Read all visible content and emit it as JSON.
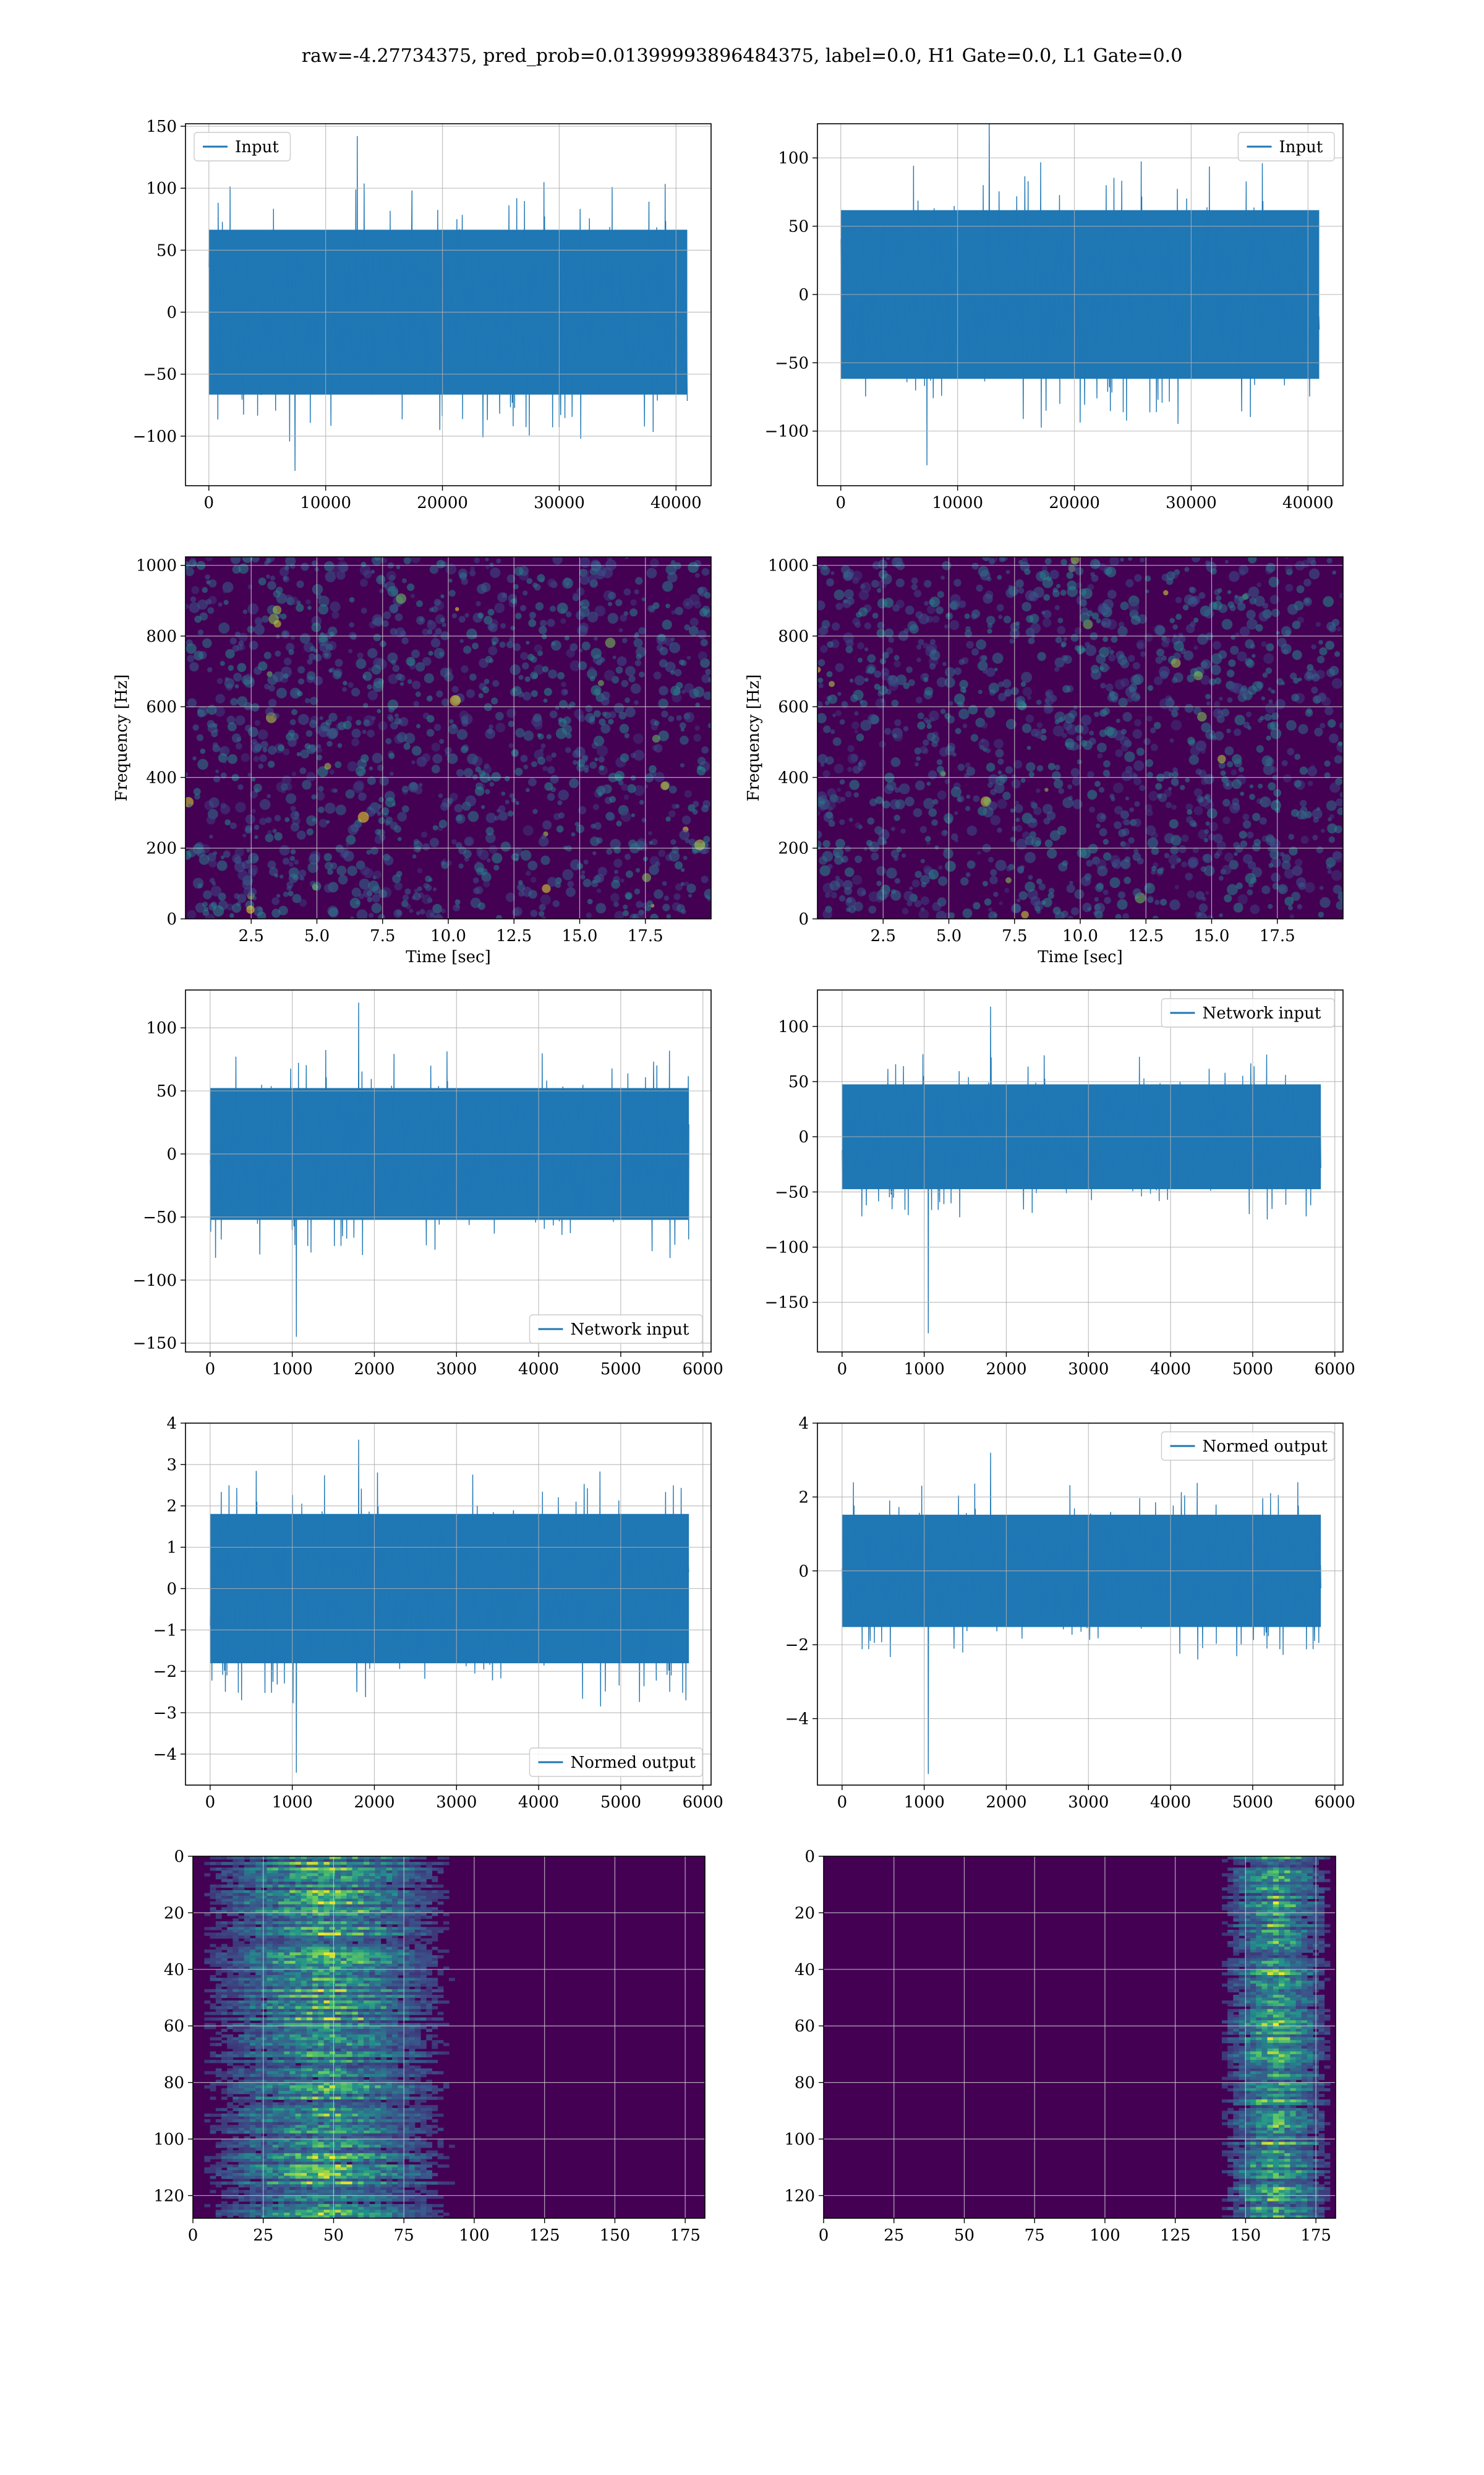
{
  "figure_title": "raw=-4.27734375, pred_prob=0.01399993896484375, label=0.0, H1 Gate=0.0, L1 Gate=0.0",
  "colors": {
    "trace": "#1f77b4",
    "grid": "#b0b0b0",
    "viridis_low": "#440154",
    "viridis_mid": "#21918c",
    "viridis_high": "#fde725"
  },
  "chart_data": [
    {
      "panel": "row1-left",
      "type": "line",
      "legend": [
        "Input"
      ],
      "legend_loc": "upper-left",
      "xlim": [
        -2000,
        43000
      ],
      "ylim": [
        -140,
        152
      ],
      "xticks": [
        0,
        10000,
        20000,
        30000,
        40000
      ],
      "yticks": [
        -100,
        -50,
        0,
        50,
        100,
        150
      ],
      "grid": true,
      "series": [
        {
          "x_range": [
            0,
            40960
          ],
          "envelope": [
            -70,
            70
          ],
          "spike_max": 142,
          "spike_min": -128
        }
      ]
    },
    {
      "panel": "row1-right",
      "type": "line",
      "legend": [
        "Input"
      ],
      "legend_loc": "upper-right",
      "xlim": [
        -2000,
        43000
      ],
      "ylim": [
        -140,
        125
      ],
      "xticks": [
        0,
        10000,
        20000,
        30000,
        40000
      ],
      "yticks": [
        -100,
        -50,
        0,
        50,
        100
      ],
      "grid": true,
      "series": [
        {
          "x_range": [
            0,
            40960
          ],
          "envelope": [
            -65,
            65
          ],
          "spike_max": 127,
          "spike_min": -125
        }
      ]
    },
    {
      "panel": "row2-left",
      "type": "heatmap",
      "xlabel": "Time [sec]",
      "ylabel": "Frequency [Hz]",
      "xlim": [
        0,
        20
      ],
      "ylim": [
        0,
        1024
      ],
      "xticks": [
        2.5,
        5.0,
        7.5,
        10.0,
        12.5,
        15.0,
        17.5
      ],
      "yticks": [
        0,
        200,
        400,
        600,
        800,
        1000
      ],
      "grid": true,
      "colormap": "viridis"
    },
    {
      "panel": "row2-right",
      "type": "heatmap",
      "xlabel": "Time [sec]",
      "ylabel": "Frequency [Hz]",
      "xlim": [
        0,
        20
      ],
      "ylim": [
        0,
        1024
      ],
      "xticks": [
        2.5,
        5.0,
        7.5,
        10.0,
        12.5,
        15.0,
        17.5
      ],
      "yticks": [
        0,
        200,
        400,
        600,
        800,
        1000
      ],
      "grid": true,
      "colormap": "viridis"
    },
    {
      "panel": "row3-left",
      "type": "line",
      "legend": [
        "Network input"
      ],
      "legend_loc": "lower-right",
      "xlim": [
        -300,
        6100
      ],
      "ylim": [
        -157,
        130
      ],
      "xticks": [
        0,
        1000,
        2000,
        3000,
        4000,
        5000,
        6000
      ],
      "yticks": [
        -150,
        -100,
        -50,
        0,
        50,
        100
      ],
      "grid": true,
      "series": [
        {
          "x_range": [
            0,
            5830
          ],
          "envelope": [
            -55,
            55
          ],
          "spike_max": 120,
          "spike_min": -145
        }
      ]
    },
    {
      "panel": "row3-right",
      "type": "line",
      "legend": [
        "Network input"
      ],
      "legend_loc": "upper-right",
      "xlim": [
        -300,
        6100
      ],
      "ylim": [
        -195,
        133
      ],
      "xticks": [
        0,
        1000,
        2000,
        3000,
        4000,
        5000,
        6000
      ],
      "yticks": [
        -150,
        -100,
        -50,
        0,
        50,
        100
      ],
      "grid": true,
      "series": [
        {
          "x_range": [
            0,
            5830
          ],
          "envelope": [
            -50,
            50
          ],
          "spike_max": 118,
          "spike_min": -178
        }
      ]
    },
    {
      "panel": "row4-left",
      "type": "line",
      "legend": [
        "Normed output"
      ],
      "legend_loc": "lower-right",
      "xlim": [
        -300,
        6100
      ],
      "ylim": [
        -4.75,
        4.0
      ],
      "xticks": [
        0,
        1000,
        2000,
        3000,
        4000,
        5000,
        6000
      ],
      "yticks": [
        -4,
        -3,
        -2,
        -1,
        0,
        1,
        2,
        3,
        4
      ],
      "grid": true,
      "series": [
        {
          "x_range": [
            0,
            5830
          ],
          "envelope": [
            -1.9,
            1.9
          ],
          "spike_max": 3.6,
          "spike_min": -4.45
        }
      ]
    },
    {
      "panel": "row4-right",
      "type": "line",
      "legend": [
        "Normed output"
      ],
      "legend_loc": "upper-right",
      "xlim": [
        -300,
        6100
      ],
      "ylim": [
        -5.8,
        4.0
      ],
      "xticks": [
        0,
        1000,
        2000,
        3000,
        4000,
        5000,
        6000
      ],
      "yticks": [
        -4,
        -2,
        0,
        2,
        4
      ],
      "grid": true,
      "series": [
        {
          "x_range": [
            0,
            5830
          ],
          "envelope": [
            -1.6,
            1.6
          ],
          "spike_max": 3.2,
          "spike_min": -5.5
        }
      ]
    },
    {
      "panel": "row5-left",
      "type": "heatmap",
      "xlim": [
        0,
        182
      ],
      "ylim": [
        128,
        0
      ],
      "xticks": [
        0,
        25,
        50,
        75,
        100,
        125,
        150,
        175
      ],
      "yticks": [
        0,
        20,
        40,
        60,
        80,
        100,
        120
      ],
      "grid": true,
      "colormap": "viridis",
      "active_x_range": [
        0,
        95
      ]
    },
    {
      "panel": "row5-right",
      "type": "heatmap",
      "xlim": [
        0,
        182
      ],
      "ylim": [
        128,
        0
      ],
      "xticks": [
        0,
        25,
        50,
        75,
        100,
        125,
        150,
        175
      ],
      "yticks": [
        0,
        20,
        40,
        60,
        80,
        100,
        120
      ],
      "grid": true,
      "colormap": "viridis",
      "active_x_range": [
        140,
        182
      ]
    }
  ]
}
